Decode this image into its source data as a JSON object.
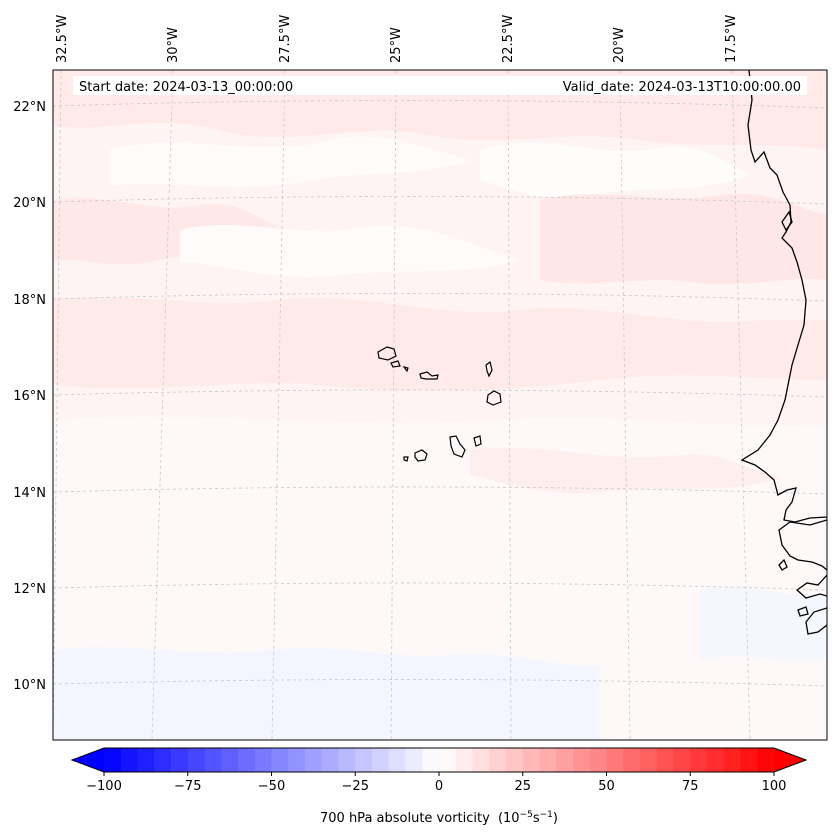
{
  "map": {
    "start_date_label": "Start date: 2024-03-13_00:00:00",
    "valid_date_label": "Valid_date: 2024-03-13T10:00:00.00",
    "field_name": "700 hPa absolute vorticity",
    "units_prefix": "(10",
    "units_exp1": "−5",
    "units_mid": "s",
    "units_exp2": "−1",
    "units_suffix": ")",
    "lon_labels": [
      "32.5°W",
      "30°W",
      "27.5°W",
      "25°W",
      "22.5°W",
      "20°W",
      "17.5°W"
    ],
    "lat_labels": [
      "22°N",
      "20°N",
      "18°N",
      "16°N",
      "14°N",
      "12°N",
      "10°N"
    ],
    "gridlines": "dashed, light gray",
    "features": [
      "Cape Verde islands",
      "West African coastline"
    ]
  },
  "colorbar": {
    "min": -100,
    "max": 100,
    "extend": "both",
    "colormap": "bwr",
    "low_color": "#0000ff",
    "mid_color": "#ffffff",
    "high_color": "#ff0000",
    "tick_labels": [
      "−100",
      "−75",
      "−50",
      "−25",
      "0",
      "25",
      "50",
      "75",
      "100"
    ]
  },
  "colors": {
    "frame": "#000000",
    "grid": "#c8c8c8",
    "light_red": "#ffe6e6",
    "very_light_red": "#fff3f3",
    "near_white": "#fffafa",
    "light_blue": "#f4f6ff",
    "coast": "#000000"
  }
}
